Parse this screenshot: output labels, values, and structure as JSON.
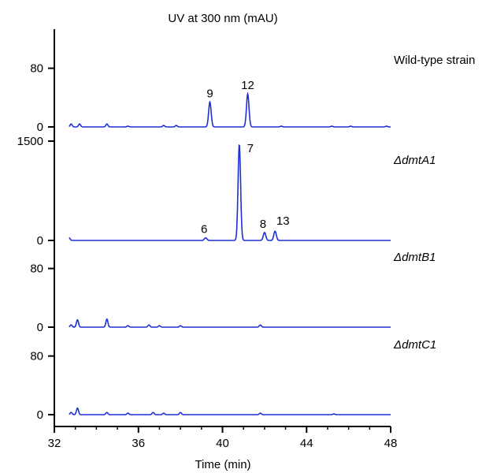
{
  "chart_data": {
    "type": "line",
    "title": "UV at 300 nm (mAU)",
    "xlabel": "Time (min)",
    "xlim": [
      32,
      48
    ],
    "x_ticks": [
      "32",
      "36",
      "40",
      "44",
      "48"
    ],
    "colors": {
      "trace": "#1f2fd6",
      "axis": "#000000"
    },
    "panels": [
      {
        "name": "Wild-type strain",
        "italic": false,
        "ylim": [
          0,
          100
        ],
        "y_ticks": [
          {
            "value": 0,
            "label": "0"
          },
          {
            "value": 80,
            "label": "80"
          }
        ],
        "baseline_noise": [
          [
            32.8,
            4
          ],
          [
            33.2,
            4
          ],
          [
            34.5,
            4
          ],
          [
            35.5,
            1
          ],
          [
            37.2,
            2
          ],
          [
            37.8,
            2
          ],
          [
            42.8,
            1
          ],
          [
            45.2,
            1
          ],
          [
            46.1,
            1
          ],
          [
            47.8,
            1
          ]
        ],
        "peaks": [
          {
            "label": "9",
            "time": 39.4,
            "height": 34
          },
          {
            "label": "12",
            "time": 41.2,
            "height": 45
          }
        ]
      },
      {
        "name": "ΔdmtA1",
        "italic": true,
        "ylim": [
          0,
          1500
        ],
        "y_ticks": [
          {
            "value": 0,
            "label": "0"
          },
          {
            "value": 1500,
            "label": "1500"
          }
        ],
        "baseline_noise": [
          [
            32.7,
            40
          ]
        ],
        "peaks": [
          {
            "label": "6",
            "time": 39.2,
            "height": 40
          },
          {
            "label": "7",
            "time": 40.8,
            "height": 1450
          },
          {
            "label": "8",
            "time": 42.0,
            "height": 120
          },
          {
            "label": "13",
            "time": 42.5,
            "height": 140
          }
        ]
      },
      {
        "name": "ΔdmtB1",
        "italic": true,
        "ylim": [
          0,
          100
        ],
        "y_ticks": [
          {
            "value": 0,
            "label": "0"
          },
          {
            "value": 80,
            "label": "80"
          }
        ],
        "baseline_noise": [
          [
            32.8,
            3
          ],
          [
            33.1,
            10
          ],
          [
            34.5,
            11
          ],
          [
            35.5,
            2
          ],
          [
            36.5,
            3
          ],
          [
            37.0,
            2
          ],
          [
            38.0,
            2
          ],
          [
            41.8,
            3
          ]
        ],
        "peaks": []
      },
      {
        "name": "ΔdmtC1",
        "italic": true,
        "ylim": [
          0,
          100
        ],
        "y_ticks": [
          {
            "value": 0,
            "label": "0"
          },
          {
            "value": 80,
            "label": "80"
          }
        ],
        "baseline_noise": [
          [
            32.8,
            3
          ],
          [
            33.1,
            9
          ],
          [
            34.5,
            3
          ],
          [
            35.5,
            2
          ],
          [
            36.7,
            3
          ],
          [
            37.2,
            2
          ],
          [
            38.0,
            3
          ],
          [
            41.8,
            2
          ],
          [
            45.3,
            1
          ]
        ],
        "peaks": []
      }
    ]
  }
}
